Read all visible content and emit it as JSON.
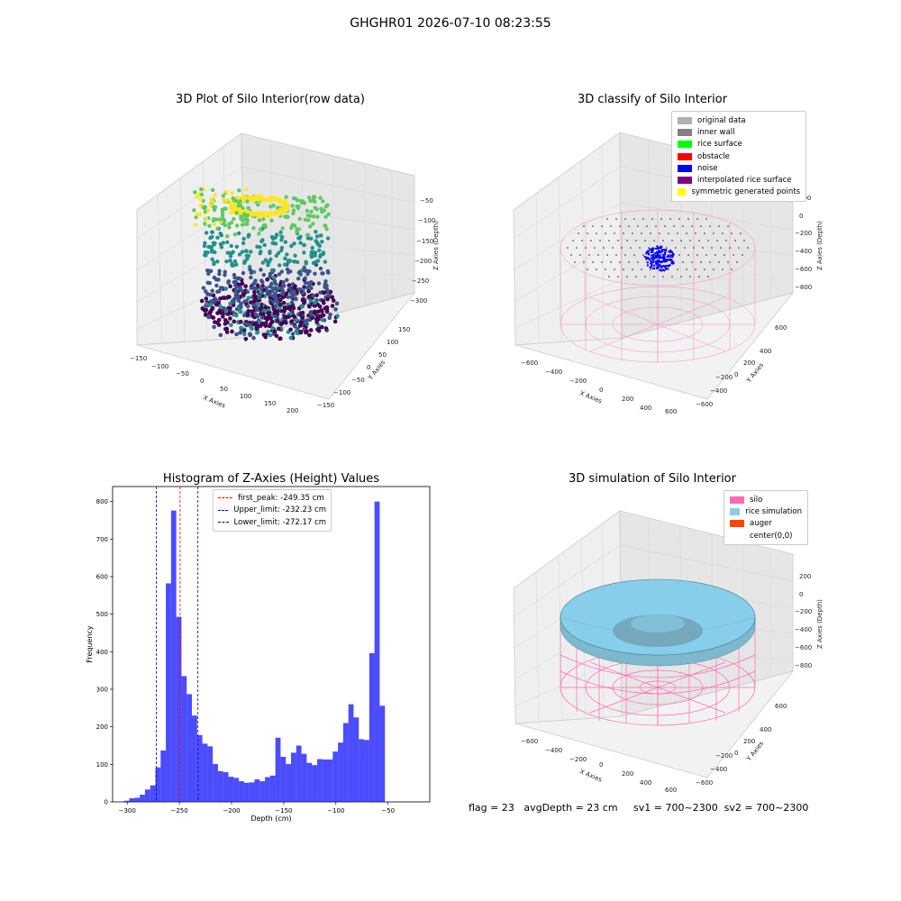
{
  "figure": {
    "suptitle": "GHGHR01 2026-07-10 08:23:55",
    "footer": "flag = 23   avgDepth = 23 cm     sv1 = 700~2300  sv2 = 700~2300"
  },
  "panels": {
    "raw": {
      "title": "3D Plot of Silo Interior(row data)",
      "xlabel": "X Axies",
      "ylabel": "Y Axies",
      "zlabel": "Z Axies (Depth)",
      "xticks": [
        "−150",
        "−100",
        "−50",
        "0",
        "50",
        "100",
        "150",
        "200"
      ],
      "yticks": [
        "150",
        "100",
        "50",
        "0",
        "−50",
        "−100",
        "−150"
      ],
      "zticks": [
        "−50",
        "−100",
        "−150",
        "−200",
        "−250",
        "−300"
      ],
      "colormap": [
        "#440154",
        "#3b528b",
        "#21918c",
        "#5ec962",
        "#fde725"
      ]
    },
    "classify": {
      "title": "3D classify of Silo Interior",
      "xlabel": "X Axies",
      "ylabel": "Y Axies",
      "zlabel": "Z Axies (Depth)",
      "xticks": [
        "−600",
        "−400",
        "−200",
        "0",
        "200",
        "400",
        "600"
      ],
      "yticks": [
        "600",
        "400",
        "200",
        "0",
        "−200",
        "−400",
        "−600"
      ],
      "zticks": [
        "200",
        "0",
        "−200",
        "−400",
        "−600",
        "−800"
      ],
      "legend": [
        {
          "label": "original data",
          "color": "#b0b0b0"
        },
        {
          "label": "inner wall",
          "color": "#808080"
        },
        {
          "label": "rice surface",
          "color": "#00ff00"
        },
        {
          "label": "obstacle",
          "color": "#ff0000"
        },
        {
          "label": "noise",
          "color": "#0000ff"
        },
        {
          "label": "interpolated rice surface",
          "color": "#800080"
        },
        {
          "label": "symmetric generated points",
          "color": "#ffff00"
        }
      ]
    },
    "simulation": {
      "title": "3D simulation of Silo Interior",
      "xlabel": "X Axies",
      "ylabel": "Y Axies",
      "zlabel": "Z Axies (Depth)",
      "xticks": [
        "−600",
        "−400",
        "−200",
        "0",
        "200",
        "400",
        "600"
      ],
      "yticks": [
        "600",
        "400",
        "200",
        "0",
        "−200",
        "−400",
        "−600"
      ],
      "zticks": [
        "200",
        "0",
        "−200",
        "−400",
        "−600",
        "−800"
      ],
      "legend": [
        {
          "label": "silo",
          "color": "#ff69b4"
        },
        {
          "label": "rice simulation",
          "color": "#87ceeb"
        },
        {
          "label": "auger",
          "color": "#ff4500"
        },
        {
          "label": "center(0,0)",
          "color": "#ffffff"
        }
      ]
    }
  },
  "chart_data": {
    "type": "bar",
    "title": "Histogram of Z-Axies (Height) Values",
    "xlabel": "Depth (cm)",
    "ylabel": "Frequency",
    "xlim": [
      -314,
      -10
    ],
    "ylim": [
      0,
      840
    ],
    "xticks": [
      -300,
      -250,
      -200,
      -150,
      -100,
      -50
    ],
    "yticks": [
      0,
      100,
      200,
      300,
      400,
      500,
      600,
      700,
      800
    ],
    "bin_start": -303,
    "bin_width": 5,
    "color": "#0000ff",
    "values": [
      3,
      10,
      11,
      19,
      33,
      44,
      92,
      137,
      582,
      776,
      493,
      335,
      287,
      230,
      178,
      155,
      148,
      101,
      82,
      79,
      67,
      64,
      55,
      51,
      52,
      60,
      55,
      66,
      70,
      171,
      120,
      101,
      131,
      150,
      128,
      104,
      98,
      114,
      113,
      113,
      134,
      158,
      210,
      260,
      225,
      167,
      165,
      396,
      800,
      256
    ],
    "vlines": [
      {
        "x": -249.35,
        "color": "#ff0000",
        "label": "first_peak: -249.35 cm"
      },
      {
        "x": -232.23,
        "color": "#0000aa",
        "label": "Upper_limit: -232.23 cm"
      },
      {
        "x": -272.17,
        "color": "#0000aa",
        "label": "Lower_limit: -272.17 cm"
      }
    ],
    "grid": false,
    "legend_position": "upper center"
  }
}
